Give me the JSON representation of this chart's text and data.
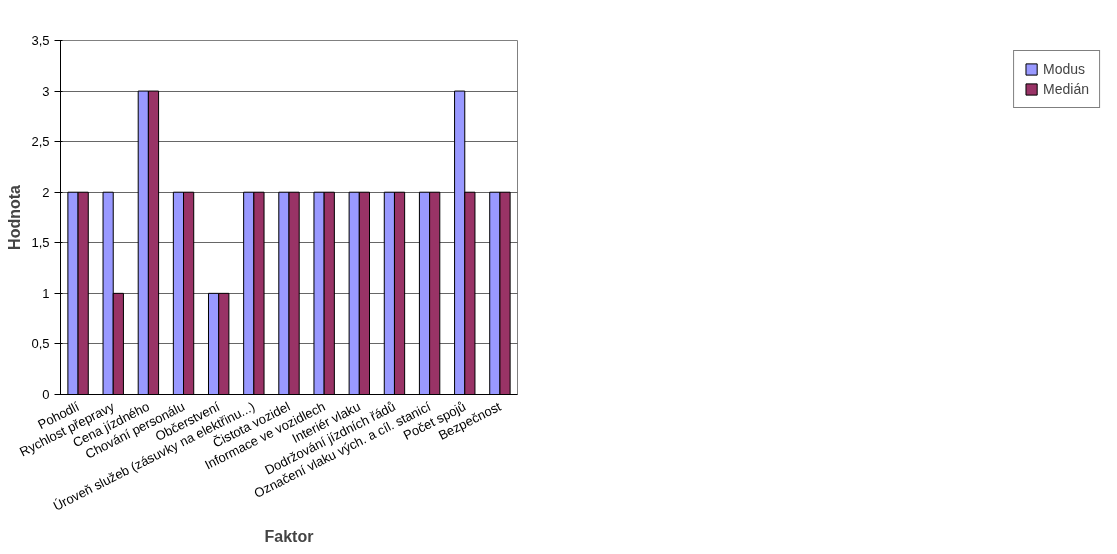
{
  "chart_data": {
    "type": "bar",
    "xlabel": "Faktor",
    "ylabel": "Hodnota",
    "categories": [
      "Pohodlí",
      "Rychlost přepravy",
      "Cena jízdného",
      "Chování personálu",
      "Občerstvení",
      "Úroveň služeb (zásuvky na elektřinu...)",
      "Čistota vozidel",
      "Informace ve vozidlech",
      "Interiér vlaku",
      "Dodržování jízdních řádů",
      "Označení vlaku vých. a cíl. stanicí",
      "Počet spojů",
      "Bezpečnost"
    ],
    "series": [
      {
        "name": "Modus",
        "color": "#9999ff",
        "values": [
          2,
          2,
          3,
          2,
          1,
          2,
          2,
          2,
          2,
          2,
          2,
          3,
          2
        ]
      },
      {
        "name": "Medián",
        "color": "#993366",
        "values": [
          2,
          1,
          3,
          2,
          1,
          2,
          2,
          2,
          2,
          2,
          2,
          2,
          2
        ]
      }
    ],
    "ylim": [
      0,
      3.5
    ],
    "yticks": [
      0,
      {
        "value": 0.5,
        "label": "0,5"
      },
      1,
      {
        "value": 1.5,
        "label": "1,5"
      },
      2,
      {
        "value": 2.5,
        "label": "2,5"
      },
      3,
      {
        "value": 3.5,
        "label": "3,5"
      }
    ],
    "grid": "y",
    "legend": "right"
  }
}
